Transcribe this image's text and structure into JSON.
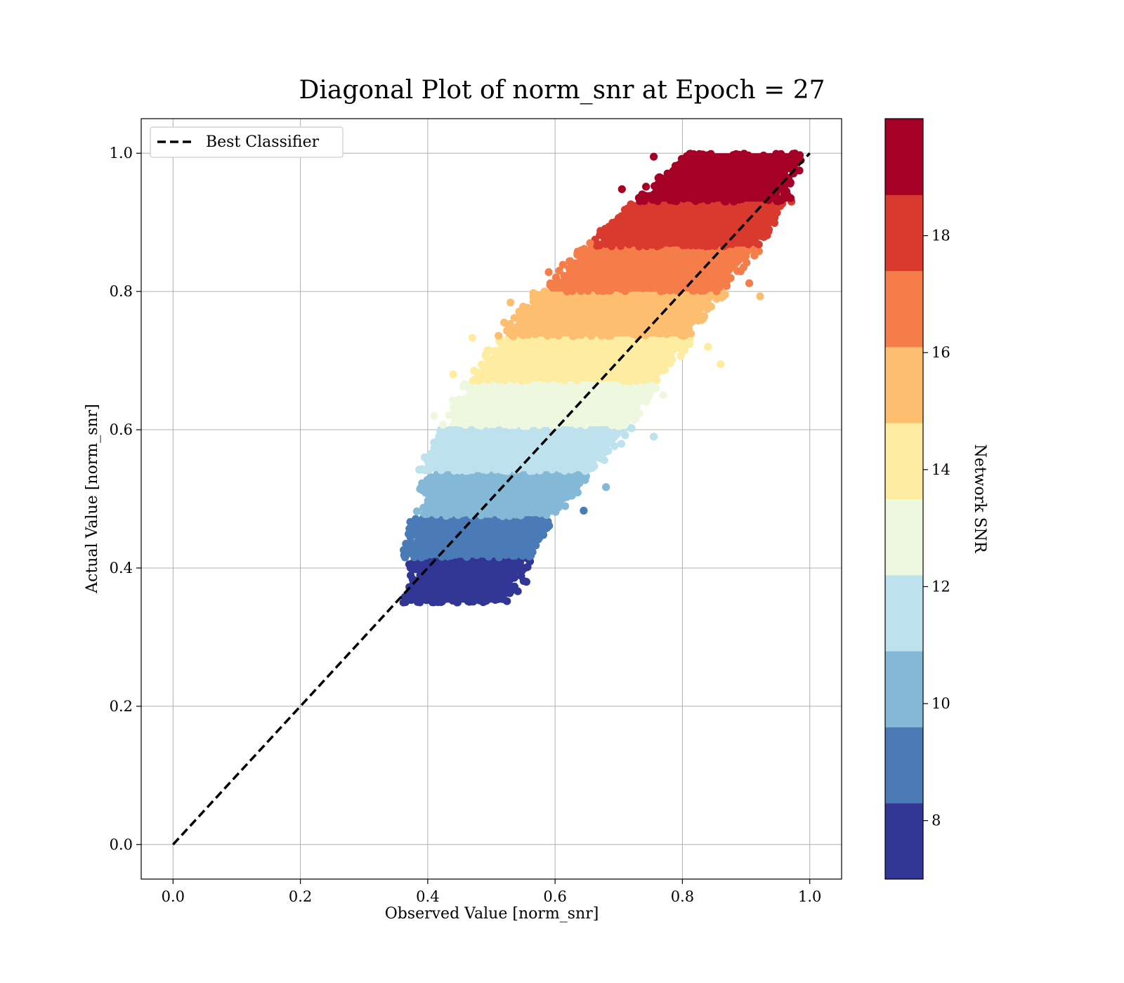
{
  "chart_data": {
    "type": "scatter",
    "title": "Diagonal Plot of norm_snr at Epoch = 27",
    "xlabel": "Observed Value [norm_snr]",
    "ylabel": "Actual Value [norm_snr]",
    "xlim": [
      -0.05,
      1.05
    ],
    "ylim": [
      -0.05,
      1.05
    ],
    "xticks": [
      "0.0",
      "0.2",
      "0.4",
      "0.6",
      "0.8",
      "1.0"
    ],
    "yticks": [
      "0.0",
      "0.2",
      "0.4",
      "0.6",
      "0.8",
      "1.0"
    ],
    "grid": true,
    "legend": {
      "position": "upper-left",
      "entries": [
        {
          "label": "Best Classifier",
          "style": "dashed",
          "color": "#000000"
        }
      ]
    },
    "reference_line": {
      "name": "Best Classifier",
      "x": [
        0.0,
        1.0
      ],
      "y": [
        0.0,
        1.0
      ]
    },
    "colorbar": {
      "label": "Network SNR",
      "range": [
        7,
        20
      ],
      "ticks": [
        "8",
        "10",
        "12",
        "14",
        "16",
        "18"
      ],
      "tick_values": [
        8,
        10,
        12,
        14,
        16,
        18
      ],
      "colormap": "RdYlBu_r",
      "levels": [
        {
          "low": 7.0,
          "high": 8.3,
          "color": "#313695"
        },
        {
          "low": 8.3,
          "high": 9.6,
          "color": "#4a7bb7"
        },
        {
          "low": 9.6,
          "high": 10.9,
          "color": "#83b8d7"
        },
        {
          "low": 10.9,
          "high": 12.2,
          "color": "#bde2ee"
        },
        {
          "low": 12.2,
          "high": 13.5,
          "color": "#eef8df"
        },
        {
          "low": 13.5,
          "high": 14.8,
          "color": "#feeda1"
        },
        {
          "low": 14.8,
          "high": 16.1,
          "color": "#fdbe70"
        },
        {
          "low": 16.1,
          "high": 17.4,
          "color": "#f57d4a"
        },
        {
          "low": 17.4,
          "high": 18.7,
          "color": "#da3a2e"
        },
        {
          "low": 18.7,
          "high": 20.0,
          "color": "#a50026"
        }
      ]
    },
    "bands": [
      {
        "y_range": [
          0.35,
          0.415
        ],
        "x_left": [
          0.365,
          0.375
        ],
        "x_right": [
          0.53,
          0.565
        ],
        "color": "#313695"
      },
      {
        "y_range": [
          0.415,
          0.475
        ],
        "x_left": [
          0.365,
          0.375
        ],
        "x_right": [
          0.56,
          0.6
        ],
        "color": "#4a7bb7"
      },
      {
        "y_range": [
          0.475,
          0.54
        ],
        "x_left": [
          0.375,
          0.4
        ],
        "x_right": [
          0.6,
          0.66
        ],
        "color": "#83b8d7"
      },
      {
        "y_range": [
          0.54,
          0.605
        ],
        "x_left": [
          0.385,
          0.42
        ],
        "x_right": [
          0.66,
          0.73
        ],
        "color": "#bde2ee"
      },
      {
        "y_range": [
          0.605,
          0.67
        ],
        "x_left": [
          0.42,
          0.46
        ],
        "x_right": [
          0.72,
          0.77
        ],
        "color": "#eef8df"
      },
      {
        "y_range": [
          0.67,
          0.735
        ],
        "x_left": [
          0.46,
          0.51
        ],
        "x_right": [
          0.77,
          0.82
        ],
        "color": "#feeda1"
      },
      {
        "y_range": [
          0.735,
          0.8
        ],
        "x_left": [
          0.51,
          0.57
        ],
        "x_right": [
          0.81,
          0.87
        ],
        "color": "#fdbe70"
      },
      {
        "y_range": [
          0.8,
          0.865
        ],
        "x_left": [
          0.58,
          0.64
        ],
        "x_right": [
          0.86,
          0.93
        ],
        "color": "#f57d4a"
      },
      {
        "y_range": [
          0.865,
          0.93
        ],
        "x_left": [
          0.65,
          0.72
        ],
        "x_right": [
          0.92,
          0.97
        ],
        "color": "#da3a2e"
      },
      {
        "y_range": [
          0.93,
          1.0
        ],
        "x_left": [
          0.72,
          0.81
        ],
        "x_right": [
          0.96,
          0.99
        ],
        "color": "#a50026"
      }
    ],
    "outliers": [
      {
        "x": 0.47,
        "y": 0.733,
        "color": "#feeda1"
      },
      {
        "x": 0.53,
        "y": 0.784,
        "color": "#fdbe70"
      },
      {
        "x": 0.59,
        "y": 0.828,
        "color": "#f57d4a"
      },
      {
        "x": 0.755,
        "y": 0.995,
        "color": "#a50026"
      },
      {
        "x": 0.755,
        "y": 0.59,
        "color": "#bde2ee"
      },
      {
        "x": 0.68,
        "y": 0.517,
        "color": "#83b8d7"
      },
      {
        "x": 0.645,
        "y": 0.483,
        "color": "#4a7bb7"
      },
      {
        "x": 0.905,
        "y": 0.812,
        "color": "#f57d4a"
      },
      {
        "x": 0.922,
        "y": 0.793,
        "color": "#fdbe70"
      },
      {
        "x": 0.86,
        "y": 0.695,
        "color": "#feeda1"
      },
      {
        "x": 0.92,
        "y": 0.868,
        "color": "#da3a2e"
      },
      {
        "x": 0.97,
        "y": 0.935,
        "color": "#a50026"
      },
      {
        "x": 0.84,
        "y": 0.72,
        "color": "#feeda1"
      },
      {
        "x": 0.77,
        "y": 0.65,
        "color": "#eef8df"
      },
      {
        "x": 0.41,
        "y": 0.62,
        "color": "#eef8df"
      },
      {
        "x": 0.44,
        "y": 0.68,
        "color": "#feeda1"
      },
      {
        "x": 0.52,
        "y": 0.755,
        "color": "#fdbe70"
      },
      {
        "x": 0.58,
        "y": 0.795,
        "color": "#fdbe70"
      },
      {
        "x": 0.705,
        "y": 0.948,
        "color": "#a50026"
      },
      {
        "x": 0.655,
        "y": 0.87,
        "color": "#f57d4a"
      },
      {
        "x": 0.555,
        "y": 0.38,
        "color": "#313695"
      },
      {
        "x": 0.51,
        "y": 0.355,
        "color": "#313695"
      }
    ]
  }
}
